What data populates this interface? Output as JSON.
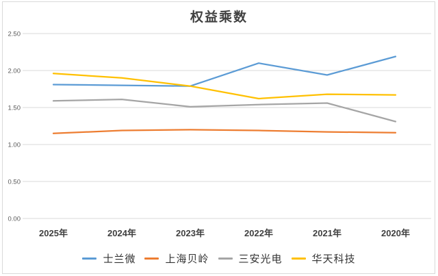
{
  "chart_data": {
    "type": "line",
    "title": "权益乘数",
    "xlabel": "",
    "ylabel": "",
    "categories": [
      "2025年",
      "2024年",
      "2023年",
      "2022年",
      "2021年",
      "2020年"
    ],
    "series": [
      {
        "name": "士兰微",
        "color": "#5B9BD5",
        "values": [
          1.81,
          1.8,
          1.79,
          2.1,
          1.94,
          2.19
        ]
      },
      {
        "name": "上海贝岭",
        "color": "#ED7D31",
        "values": [
          1.15,
          1.19,
          1.2,
          1.19,
          1.17,
          1.16
        ]
      },
      {
        "name": "三安光电",
        "color": "#A5A5A5",
        "values": [
          1.59,
          1.61,
          1.51,
          1.54,
          1.56,
          1.31
        ]
      },
      {
        "name": "华天科技",
        "color": "#FFC000",
        "values": [
          1.96,
          1.9,
          1.79,
          1.62,
          1.68,
          1.67
        ]
      }
    ],
    "y_axis": {
      "min": 0,
      "max": 2.5,
      "step": 0.5,
      "tick_labels": [
        "0.00",
        "0.50",
        "1.00",
        "1.50",
        "2.00",
        "2.50"
      ]
    },
    "grid": true,
    "legend_position": "bottom"
  },
  "colors": {
    "background": "#FFFFFF",
    "frame_border": "#D9D9D9",
    "gridline": "#D9D9D9",
    "title_text": "#404040",
    "y_tick_text": "#595959",
    "x_tick_text": "#404040",
    "legend_text": "#333333"
  }
}
